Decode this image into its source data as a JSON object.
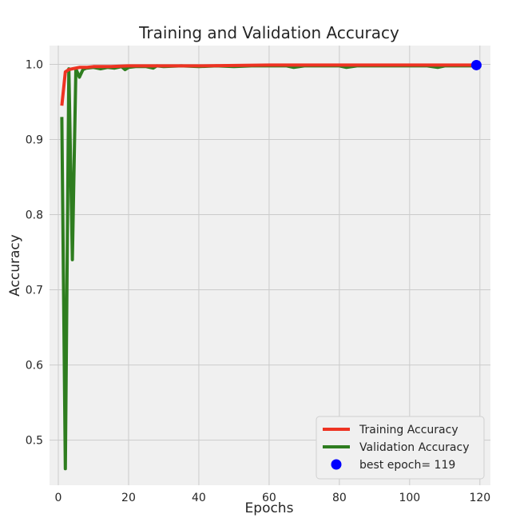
{
  "chart_data": {
    "type": "line",
    "title": "Training and Validation Accuracy",
    "xlabel": "Epochs",
    "ylabel": "Accuracy",
    "xlim": [
      -2.5,
      123
    ],
    "ylim": [
      0.44,
      1.025
    ],
    "xticks": [
      0,
      20,
      40,
      60,
      80,
      100,
      120
    ],
    "yticks": [
      0.5,
      0.6,
      0.7,
      0.8,
      0.9,
      1.0
    ],
    "grid": true,
    "legend_position": "bottom-right",
    "colors": {
      "plot_background": "#f0f0f0",
      "grid": "#cbcbcb",
      "training": "#ee3322",
      "validation": "#2e7d1f",
      "best": "#0000ff"
    },
    "series": [
      {
        "name": "Training Accuracy",
        "x": [
          1,
          2,
          3,
          4,
          5,
          6,
          8,
          10,
          15,
          20,
          30,
          40,
          60,
          80,
          100,
          119
        ],
        "y": [
          0.945,
          0.99,
          0.993,
          0.994,
          0.995,
          0.996,
          0.996,
          0.997,
          0.997,
          0.998,
          0.998,
          0.998,
          0.999,
          0.999,
          0.999,
          0.999
        ]
      },
      {
        "name": "Validation Accuracy",
        "x": [
          1,
          2,
          3,
          4,
          5,
          6,
          7,
          8,
          10,
          12,
          14,
          16,
          18,
          19,
          20,
          22,
          25,
          27,
          28,
          30,
          35,
          40,
          45,
          50,
          55,
          60,
          65,
          67,
          70,
          75,
          80,
          82,
          85,
          90,
          95,
          100,
          105,
          108,
          110,
          115,
          119
        ],
        "y": [
          0.93,
          0.462,
          0.994,
          0.74,
          0.994,
          0.983,
          0.993,
          0.995,
          0.996,
          0.994,
          0.996,
          0.995,
          0.997,
          0.993,
          0.996,
          0.997,
          0.997,
          0.995,
          0.998,
          0.997,
          0.998,
          0.997,
          0.998,
          0.997,
          0.998,
          0.998,
          0.998,
          0.996,
          0.998,
          0.998,
          0.998,
          0.996,
          0.998,
          0.998,
          0.998,
          0.998,
          0.998,
          0.996,
          0.998,
          0.998,
          0.998
        ]
      }
    ],
    "best_point": {
      "label": "best epoch= 119",
      "x": 119,
      "y": 0.999
    }
  }
}
